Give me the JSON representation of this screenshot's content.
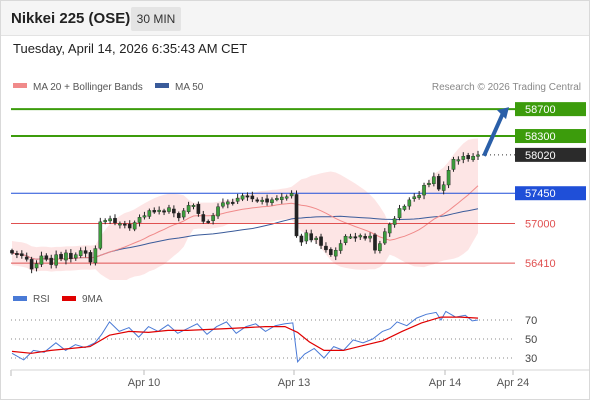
{
  "header": {
    "title": "Nikkei 225 (OSE)",
    "timeframe": "30 MIN",
    "datetime": "Tuesday, April 14, 2026 6:35:43 AM CET"
  },
  "legend": {
    "ma20_label": "MA 20 + Bollinger Bands",
    "ma50_label": "MA 50",
    "credit": "Research © 2026 Trading Central",
    "ma20_color": "#f08a8a",
    "ma50_color": "#3a5b9a"
  },
  "rsi_legend": {
    "rsi_label": "RSI",
    "ma9_label": "9MA",
    "rsi_color": "#4a7ad6",
    "ma9_color": "#e00000"
  },
  "chart_data": {
    "type": "line",
    "subtype": "candlestick-with-indicators",
    "price_axis_range": [
      56160,
      58910
    ],
    "x_ticks": [
      "Apr 10",
      "Apr 13",
      "Apr 14",
      "Apr 24"
    ],
    "levels": [
      {
        "value": 58700,
        "label": "58700",
        "kind": "resistance",
        "color": "#3c9c0c"
      },
      {
        "value": 58300,
        "label": "58300",
        "kind": "resistance",
        "color": "#3c9c0c"
      },
      {
        "value": 58020,
        "label": "58020",
        "kind": "last-price",
        "color": "#2b2b2b"
      },
      {
        "value": 57450,
        "label": "57450",
        "kind": "pivot",
        "color": "#1f4fd8"
      },
      {
        "value": 57000,
        "label": "57000",
        "kind": "support",
        "color": "#e05050"
      },
      {
        "value": 56410,
        "label": "56410",
        "kind": "support",
        "color": "#e05050"
      }
    ],
    "forecast_arrow": {
      "from": 58020,
      "to": 58700,
      "direction": "up",
      "color": "#2a5fa8"
    },
    "price_series": [
      {
        "x": 0,
        "v": 56560
      },
      {
        "x": 5,
        "v": 56540
      },
      {
        "x": 10,
        "v": 56520
      },
      {
        "x": 15,
        "v": 56470
      },
      {
        "x": 20,
        "v": 56320
      },
      {
        "x": 25,
        "v": 56400
      },
      {
        "x": 30,
        "v": 56520
      },
      {
        "x": 35,
        "v": 56470
      },
      {
        "x": 40,
        "v": 56380
      },
      {
        "x": 45,
        "v": 56540
      },
      {
        "x": 50,
        "v": 56470
      },
      {
        "x": 55,
        "v": 56570
      },
      {
        "x": 60,
        "v": 56470
      },
      {
        "x": 65,
        "v": 56530
      },
      {
        "x": 70,
        "v": 56600
      },
      {
        "x": 75,
        "v": 56570
      },
      {
        "x": 80,
        "v": 56410
      },
      {
        "x": 85,
        "v": 56570
      },
      {
        "x": 88,
        "v": 56890
      },
      {
        "x": 92,
        "v": 57100
      },
      {
        "x": 96,
        "v": 57040
      },
      {
        "x": 100,
        "v": 57080
      },
      {
        "x": 105,
        "v": 57010
      },
      {
        "x": 110,
        "v": 57000
      },
      {
        "x": 115,
        "v": 56990
      },
      {
        "x": 120,
        "v": 56920
      },
      {
        "x": 125,
        "v": 57000
      },
      {
        "x": 130,
        "v": 57090
      },
      {
        "x": 135,
        "v": 57100
      },
      {
        "x": 140,
        "v": 57200
      },
      {
        "x": 145,
        "v": 57160
      },
      {
        "x": 150,
        "v": 57210
      },
      {
        "x": 155,
        "v": 57150
      },
      {
        "x": 160,
        "v": 57250
      },
      {
        "x": 165,
        "v": 57180
      },
      {
        "x": 170,
        "v": 57060
      },
      {
        "x": 175,
        "v": 57170
      },
      {
        "x": 180,
        "v": 57260
      },
      {
        "x": 185,
        "v": 57300
      },
      {
        "x": 190,
        "v": 57180
      },
      {
        "x": 195,
        "v": 57040
      },
      {
        "x": 200,
        "v": 57000
      },
      {
        "x": 205,
        "v": 57080
      },
      {
        "x": 210,
        "v": 57230
      },
      {
        "x": 215,
        "v": 57300
      },
      {
        "x": 220,
        "v": 57330
      },
      {
        "x": 225,
        "v": 57300
      },
      {
        "x": 230,
        "v": 57360
      },
      {
        "x": 235,
        "v": 57420
      },
      {
        "x": 240,
        "v": 57400
      },
      {
        "x": 245,
        "v": 57380
      },
      {
        "x": 250,
        "v": 57330
      },
      {
        "x": 255,
        "v": 57370
      },
      {
        "x": 260,
        "v": 57300
      },
      {
        "x": 265,
        "v": 57350
      },
      {
        "x": 270,
        "v": 57360
      },
      {
        "x": 275,
        "v": 57400
      },
      {
        "x": 280,
        "v": 57380
      },
      {
        "x": 287,
        "v": 57450
      },
      {
        "x": 294,
        "v": 56530
      },
      {
        "x": 298,
        "v": 56800
      },
      {
        "x": 303,
        "v": 56880
      },
      {
        "x": 308,
        "v": 56720
      },
      {
        "x": 313,
        "v": 56800
      },
      {
        "x": 318,
        "v": 56640
      },
      {
        "x": 323,
        "v": 56600
      },
      {
        "x": 328,
        "v": 56520
      },
      {
        "x": 333,
        "v": 56620
      },
      {
        "x": 338,
        "v": 56720
      },
      {
        "x": 343,
        "v": 56830
      },
      {
        "x": 348,
        "v": 56800
      },
      {
        "x": 353,
        "v": 56780
      },
      {
        "x": 358,
        "v": 56830
      },
      {
        "x": 363,
        "v": 56770
      },
      {
        "x": 368,
        "v": 56820
      },
      {
        "x": 373,
        "v": 56570
      },
      {
        "x": 378,
        "v": 56720
      },
      {
        "x": 383,
        "v": 56900
      },
      {
        "x": 388,
        "v": 57000
      },
      {
        "x": 393,
        "v": 57080
      },
      {
        "x": 398,
        "v": 57240
      },
      {
        "x": 403,
        "v": 57260
      },
      {
        "x": 408,
        "v": 57360
      },
      {
        "x": 413,
        "v": 57400
      },
      {
        "x": 418,
        "v": 57420
      },
      {
        "x": 423,
        "v": 57580
      },
      {
        "x": 428,
        "v": 57600
      },
      {
        "x": 433,
        "v": 57700
      },
      {
        "x": 438,
        "v": 57500
      },
      {
        "x": 443,
        "v": 57580
      },
      {
        "x": 448,
        "v": 57800
      },
      {
        "x": 453,
        "v": 57960
      },
      {
        "x": 458,
        "v": 57950
      },
      {
        "x": 463,
        "v": 58000
      },
      {
        "x": 468,
        "v": 57960
      },
      {
        "x": 473,
        "v": 58000
      },
      {
        "x": 478,
        "v": 58020
      }
    ],
    "rsi_axis": [
      30,
      50,
      70
    ],
    "rsi": [
      {
        "x": 0,
        "v": 35
      },
      {
        "x": 12,
        "v": 28
      },
      {
        "x": 22,
        "v": 38
      },
      {
        "x": 33,
        "v": 36
      },
      {
        "x": 45,
        "v": 46
      },
      {
        "x": 55,
        "v": 38
      },
      {
        "x": 65,
        "v": 44
      },
      {
        "x": 75,
        "v": 41
      },
      {
        "x": 85,
        "v": 46
      },
      {
        "x": 92,
        "v": 55
      },
      {
        "x": 100,
        "v": 68
      },
      {
        "x": 110,
        "v": 58
      },
      {
        "x": 120,
        "v": 62
      },
      {
        "x": 130,
        "v": 52
      },
      {
        "x": 140,
        "v": 63
      },
      {
        "x": 150,
        "v": 58
      },
      {
        "x": 160,
        "v": 65
      },
      {
        "x": 170,
        "v": 56
      },
      {
        "x": 180,
        "v": 61
      },
      {
        "x": 190,
        "v": 66
      },
      {
        "x": 200,
        "v": 55
      },
      {
        "x": 210,
        "v": 63
      },
      {
        "x": 220,
        "v": 68
      },
      {
        "x": 230,
        "v": 56
      },
      {
        "x": 240,
        "v": 63
      },
      {
        "x": 250,
        "v": 66
      },
      {
        "x": 260,
        "v": 58
      },
      {
        "x": 270,
        "v": 64
      },
      {
        "x": 280,
        "v": 66
      },
      {
        "x": 288,
        "v": 67
      },
      {
        "x": 293,
        "v": 26
      },
      {
        "x": 300,
        "v": 34
      },
      {
        "x": 310,
        "v": 40
      },
      {
        "x": 320,
        "v": 30
      },
      {
        "x": 330,
        "v": 42
      },
      {
        "x": 340,
        "v": 38
      },
      {
        "x": 350,
        "v": 49
      },
      {
        "x": 360,
        "v": 46
      },
      {
        "x": 370,
        "v": 50
      },
      {
        "x": 380,
        "v": 58
      },
      {
        "x": 388,
        "v": 61
      },
      {
        "x": 395,
        "v": 68
      },
      {
        "x": 405,
        "v": 64
      },
      {
        "x": 415,
        "v": 72
      },
      {
        "x": 425,
        "v": 76
      },
      {
        "x": 435,
        "v": 78
      },
      {
        "x": 440,
        "v": 70
      },
      {
        "x": 445,
        "v": 79
      },
      {
        "x": 455,
        "v": 73
      },
      {
        "x": 465,
        "v": 75
      },
      {
        "x": 472,
        "v": 69
      },
      {
        "x": 478,
        "v": 70
      }
    ],
    "rsi_ma9": [
      {
        "x": 0,
        "v": 37
      },
      {
        "x": 20,
        "v": 35
      },
      {
        "x": 40,
        "v": 38
      },
      {
        "x": 60,
        "v": 40
      },
      {
        "x": 80,
        "v": 42
      },
      {
        "x": 100,
        "v": 54
      },
      {
        "x": 120,
        "v": 58
      },
      {
        "x": 140,
        "v": 57
      },
      {
        "x": 160,
        "v": 59
      },
      {
        "x": 180,
        "v": 59
      },
      {
        "x": 200,
        "v": 60
      },
      {
        "x": 220,
        "v": 61
      },
      {
        "x": 240,
        "v": 62
      },
      {
        "x": 260,
        "v": 63
      },
      {
        "x": 280,
        "v": 63
      },
      {
        "x": 293,
        "v": 57
      },
      {
        "x": 305,
        "v": 47
      },
      {
        "x": 320,
        "v": 38
      },
      {
        "x": 340,
        "v": 38
      },
      {
        "x": 360,
        "v": 43
      },
      {
        "x": 380,
        "v": 48
      },
      {
        "x": 400,
        "v": 58
      },
      {
        "x": 420,
        "v": 67
      },
      {
        "x": 440,
        "v": 73
      },
      {
        "x": 460,
        "v": 73
      },
      {
        "x": 478,
        "v": 72
      }
    ]
  }
}
